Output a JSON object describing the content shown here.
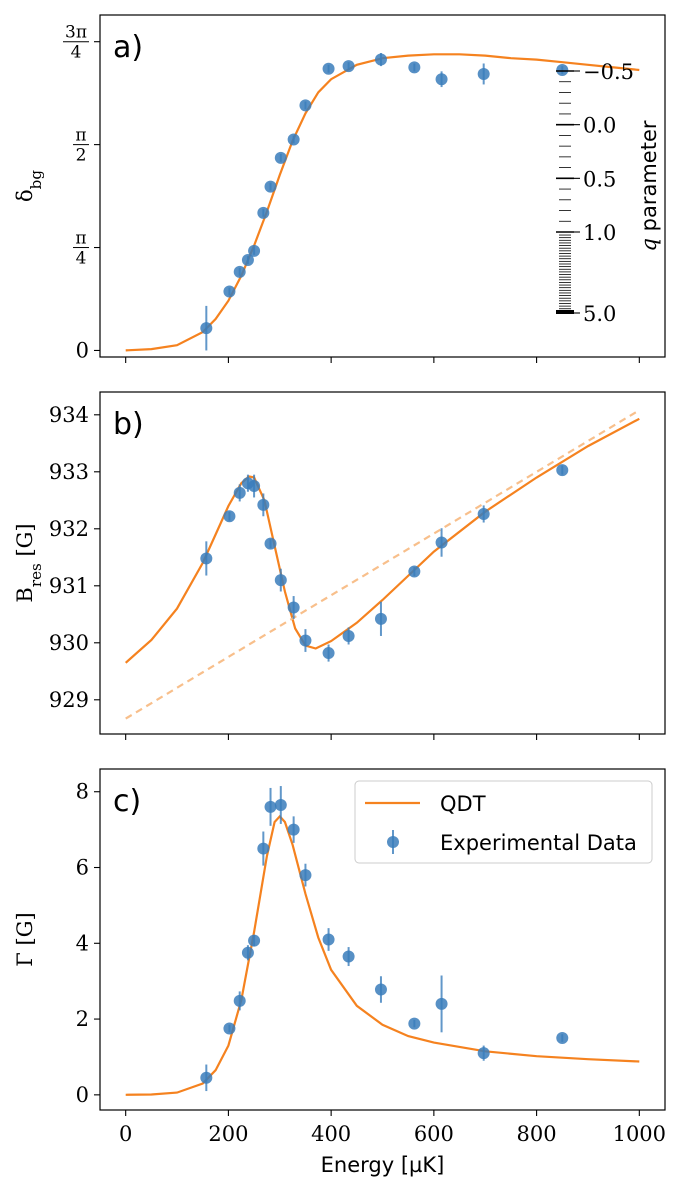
{
  "colors": {
    "data": "#3a7dbb",
    "qdt": "#f5821f",
    "bg_line": "#f8bf8b"
  },
  "x_axis": {
    "label": "Energy [µK]",
    "ticks": [
      0,
      200,
      400,
      600,
      800,
      1000
    ],
    "lim": [
      -50,
      1050
    ]
  },
  "chart_data": [
    {
      "panel_label": "a)",
      "type": "scatter",
      "ylabel": "δ_bg",
      "ylim": [
        -0.05,
        2.56
      ],
      "y_ticks": [
        {
          "value": 0,
          "label": "0"
        },
        {
          "value": 0.7854,
          "label": "π/4"
        },
        {
          "value": 1.5708,
          "label": "π/2"
        },
        {
          "value": 2.3562,
          "label": "3π/4"
        }
      ],
      "series": [
        {
          "name": "Experimental Data",
          "x": [
            157,
            202,
            222,
            238,
            250,
            268,
            282,
            302,
            327,
            350,
            395,
            434,
            497,
            562,
            615,
            697,
            850
          ],
          "y": [
            0.17,
            0.45,
            0.6,
            0.69,
            0.76,
            1.05,
            1.25,
            1.47,
            1.61,
            1.87,
            2.15,
            2.17,
            2.22,
            2.16,
            2.07,
            2.11,
            2.14
          ],
          "yerr": [
            0.17,
            0.03,
            0.03,
            0.03,
            0.03,
            0.03,
            0.03,
            0.03,
            0.03,
            0.03,
            0.03,
            0.03,
            0.05,
            0.03,
            0.06,
            0.08,
            0.03
          ]
        },
        {
          "name": "QDT",
          "x": [
            0,
            50,
            100,
            150,
            175,
            200,
            225,
            250,
            275,
            300,
            325,
            350,
            375,
            400,
            450,
            500,
            550,
            600,
            650,
            700,
            750,
            800,
            850,
            900,
            950,
            1000
          ],
          "y": [
            0.0,
            0.01,
            0.04,
            0.14,
            0.24,
            0.38,
            0.57,
            0.8,
            1.06,
            1.34,
            1.6,
            1.81,
            1.97,
            2.07,
            2.18,
            2.23,
            2.25,
            2.26,
            2.26,
            2.25,
            2.23,
            2.22,
            2.2,
            2.18,
            2.16,
            2.14
          ]
        }
      ],
      "colorbar": {
        "label": "q parameter",
        "ticks": [
          {
            "label": "−0.5",
            "value": -0.5
          },
          {
            "label": "0.0",
            "value": 0.0
          },
          {
            "label": "0.5",
            "value": 0.5
          },
          {
            "label": "1.0",
            "value": 1.0
          },
          {
            "label": "5.0",
            "value": 5.0
          }
        ]
      }
    },
    {
      "panel_label": "b)",
      "type": "scatter",
      "ylabel": "B_res [G]",
      "ylim": [
        928.4,
        934.4
      ],
      "y_ticks": [
        {
          "value": 929,
          "label": "929"
        },
        {
          "value": 930,
          "label": "930"
        },
        {
          "value": 931,
          "label": "931"
        },
        {
          "value": 932,
          "label": "932"
        },
        {
          "value": 933,
          "label": "933"
        },
        {
          "value": 934,
          "label": "934"
        }
      ],
      "series": [
        {
          "name": "Experimental Data",
          "x": [
            157,
            202,
            222,
            238,
            250,
            268,
            282,
            302,
            327,
            350,
            395,
            434,
            497,
            562,
            615,
            697,
            850
          ],
          "y": [
            931.48,
            932.22,
            932.63,
            932.8,
            932.75,
            932.42,
            931.74,
            931.1,
            930.62,
            930.04,
            929.82,
            930.12,
            930.42,
            931.25,
            931.76,
            932.26,
            933.03
          ],
          "yerr": [
            0.3,
            0.08,
            0.15,
            0.15,
            0.2,
            0.2,
            0.08,
            0.2,
            0.2,
            0.2,
            0.15,
            0.15,
            0.3,
            0.08,
            0.25,
            0.15,
            0.08
          ]
        },
        {
          "name": "QDT",
          "x": [
            0,
            50,
            100,
            150,
            175,
            200,
            225,
            240,
            250,
            270,
            290,
            310,
            330,
            350,
            370,
            400,
            450,
            500,
            600,
            700,
            800,
            900,
            1000
          ],
          "y": [
            929.65,
            930.05,
            930.6,
            931.4,
            931.9,
            932.4,
            932.8,
            932.92,
            932.9,
            932.5,
            931.7,
            930.9,
            930.25,
            929.95,
            929.9,
            930.03,
            930.35,
            930.75,
            931.6,
            932.3,
            932.9,
            933.45,
            933.93
          ]
        },
        {
          "name": "background",
          "x": [
            0,
            1000
          ],
          "y": [
            928.67,
            934.08
          ]
        }
      ]
    },
    {
      "panel_label": "c)",
      "type": "scatter",
      "ylabel": "Γ [G]",
      "ylim": [
        -0.4,
        8.6
      ],
      "y_ticks": [
        {
          "value": 0,
          "label": "0"
        },
        {
          "value": 2,
          "label": "2"
        },
        {
          "value": 4,
          "label": "4"
        },
        {
          "value": 6,
          "label": "6"
        },
        {
          "value": 8,
          "label": "8"
        }
      ],
      "legend": {
        "placement": "top-right",
        "entries": [
          "QDT",
          "Experimental Data"
        ]
      },
      "series": [
        {
          "name": "Experimental Data",
          "x": [
            157,
            202,
            222,
            238,
            250,
            268,
            282,
            302,
            327,
            350,
            395,
            434,
            497,
            562,
            615,
            697,
            850
          ],
          "y": [
            0.45,
            1.75,
            2.48,
            3.75,
            4.07,
            6.5,
            7.6,
            7.65,
            7.0,
            5.8,
            4.1,
            3.65,
            2.78,
            1.88,
            2.4,
            1.1,
            1.5
          ],
          "yerr": [
            0.35,
            0.1,
            0.25,
            0.2,
            0.15,
            0.45,
            0.5,
            0.5,
            0.35,
            0.3,
            0.3,
            0.25,
            0.35,
            0.1,
            0.75,
            0.2,
            0.1
          ]
        },
        {
          "name": "QDT",
          "x": [
            0,
            50,
            100,
            150,
            175,
            200,
            225,
            250,
            275,
            290,
            300,
            310,
            325,
            350,
            375,
            400,
            450,
            500,
            550,
            600,
            700,
            800,
            900,
            1000
          ],
          "y": [
            0.0,
            0.01,
            0.06,
            0.3,
            0.65,
            1.3,
            2.5,
            4.3,
            6.3,
            7.2,
            7.35,
            7.2,
            6.6,
            5.3,
            4.15,
            3.3,
            2.35,
            1.85,
            1.55,
            1.38,
            1.15,
            1.02,
            0.94,
            0.88
          ]
        }
      ]
    }
  ]
}
